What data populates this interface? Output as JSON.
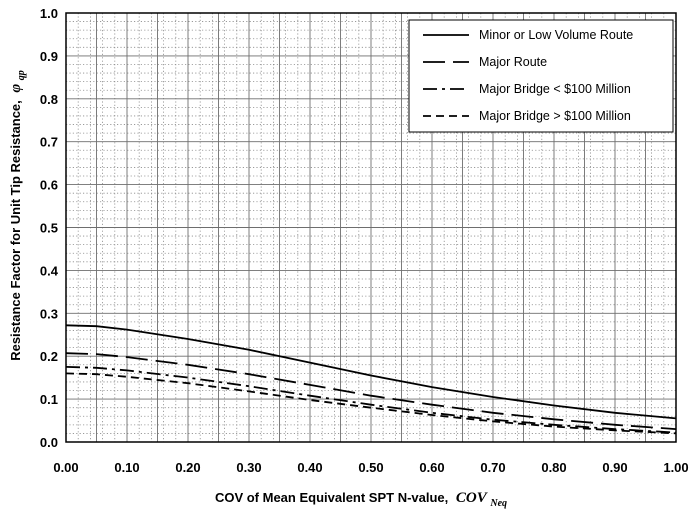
{
  "chart_data": {
    "type": "line",
    "title": "",
    "xlabel": "COV of Mean Equivalent SPT N-value,",
    "xlabel_symbol": "COV",
    "xlabel_subscript": "Neq",
    "ylabel": "Resistance Factor for Unit Tip Resistance,",
    "ylabel_symbol": "φ",
    "ylabel_subscript": "qp",
    "xlim": [
      0,
      1
    ],
    "ylim": [
      0,
      1
    ],
    "xticks": [
      "0.00",
      "0.10",
      "0.20",
      "0.30",
      "0.40",
      "0.50",
      "0.60",
      "0.70",
      "0.80",
      "0.90",
      "1.00"
    ],
    "yticks": [
      "0.0",
      "0.1",
      "0.2",
      "0.3",
      "0.4",
      "0.5",
      "0.6",
      "0.7",
      "0.8",
      "0.9",
      "1.0"
    ],
    "grid": true,
    "legend_position": "top-right",
    "x": [
      0.0,
      0.05,
      0.1,
      0.2,
      0.3,
      0.4,
      0.5,
      0.6,
      0.7,
      0.8,
      0.9,
      1.0
    ],
    "series": [
      {
        "name": "Minor or Low Volume Route",
        "dash": "solid",
        "values": [
          0.272,
          0.27,
          0.262,
          0.24,
          0.215,
          0.185,
          0.155,
          0.128,
          0.105,
          0.085,
          0.068,
          0.055
        ]
      },
      {
        "name": "Major Route",
        "dash": "long-dash",
        "values": [
          0.207,
          0.205,
          0.198,
          0.18,
          0.158,
          0.133,
          0.108,
          0.087,
          0.068,
          0.053,
          0.04,
          0.03
        ]
      },
      {
        "name": "Major Bridge < $100 Million",
        "dash": "dash-dot",
        "values": [
          0.175,
          0.173,
          0.167,
          0.15,
          0.13,
          0.108,
          0.087,
          0.068,
          0.052,
          0.04,
          0.03,
          0.022
        ]
      },
      {
        "name": "Major Bridge > $100 Million",
        "dash": "short-dash",
        "values": [
          0.16,
          0.158,
          0.152,
          0.137,
          0.118,
          0.098,
          0.08,
          0.063,
          0.048,
          0.036,
          0.027,
          0.02
        ]
      }
    ]
  }
}
